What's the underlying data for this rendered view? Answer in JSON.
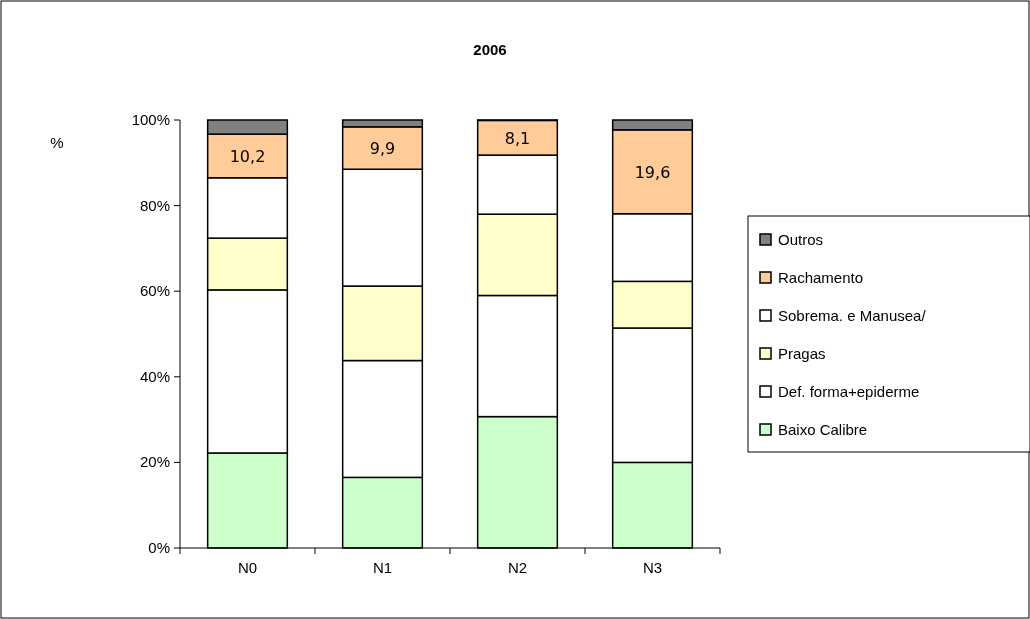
{
  "chart_data": {
    "type": "bar",
    "title": "2006",
    "ylabel": "%",
    "stacked": true,
    "categories": [
      "N0",
      "N1",
      "N2",
      "N3"
    ],
    "series": [
      {
        "name": "Baixo Calibre",
        "color": "#ccffcc",
        "values": [
          22.2,
          16.5,
          30.7,
          20.0
        ]
      },
      {
        "name": "Def. forma+epiderme",
        "color": "#ffffff",
        "values": [
          38.1,
          27.3,
          28.3,
          31.4
        ]
      },
      {
        "name": "Pragas",
        "color": "#ffffcc",
        "values": [
          12.1,
          17.4,
          19.0,
          10.9
        ]
      },
      {
        "name": "Sobrema. e Manusea/",
        "color": "#ffffff",
        "values": [
          14.1,
          27.3,
          13.8,
          15.8
        ]
      },
      {
        "name": "Rachamento",
        "color": "#ffcc99",
        "values": [
          10.2,
          9.9,
          8.1,
          19.6
        ],
        "value_labels": [
          "10,2",
          "9,9",
          "8,1",
          "19,6"
        ]
      },
      {
        "name": "Outros",
        "color": "#808080",
        "values": [
          3.3,
          1.6,
          0.1,
          2.3
        ]
      }
    ],
    "ylim": [
      0,
      100
    ],
    "yticks": [
      {
        "value": 0,
        "label": "0%"
      },
      {
        "value": 20,
        "label": "20%"
      },
      {
        "value": 40,
        "label": "40%"
      },
      {
        "value": 60,
        "label": "60%"
      },
      {
        "value": 80,
        "label": "80%"
      },
      {
        "value": 100,
        "label": "100%"
      }
    ],
    "grid": false,
    "legend": "right"
  }
}
